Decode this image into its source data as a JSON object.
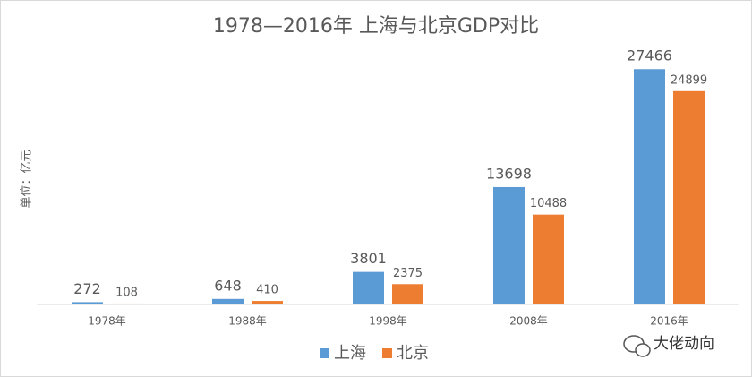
{
  "chart_data": {
    "type": "bar",
    "title": "1978—2016年 上海与北京GDP对比",
    "y_label": "单位：亿元",
    "categories": [
      "1978年",
      "1988年",
      "1998年",
      "2008年",
      "2016年"
    ],
    "series": [
      {
        "name": "上海",
        "color": "#5b9bd5",
        "values": [
          272,
          648,
          3801,
          13698,
          27466
        ]
      },
      {
        "name": "北京",
        "color": "#ed7d31",
        "values": [
          108,
          410,
          2375,
          10488,
          24899
        ]
      }
    ],
    "ylim": [
      0,
      30000
    ],
    "legend": "bottom",
    "watermark": "大佬动向"
  }
}
